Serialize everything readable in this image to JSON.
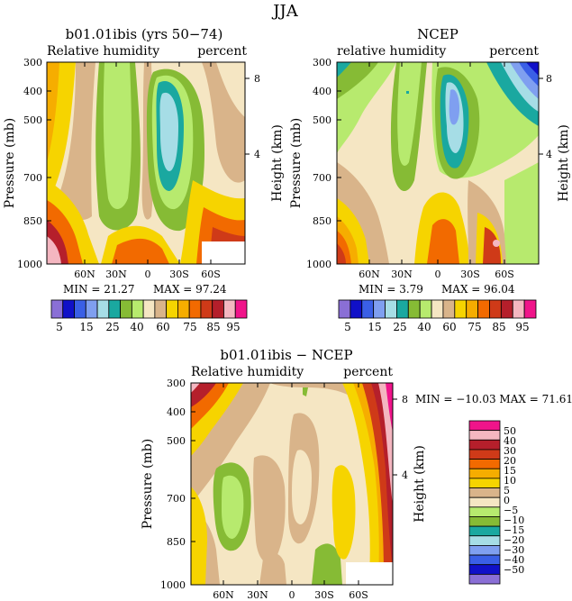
{
  "figure_title": "JJA",
  "colors": {
    "abs_scale": [
      "#8a6fd6",
      "#1010c8",
      "#3a5fe6",
      "#7f9ff0",
      "#a6dde6",
      "#1aa8a0",
      "#86bb35",
      "#b7ea6e",
      "#f5e6c3",
      "#d9b48a",
      "#f6d400",
      "#f6ad00",
      "#f26a00",
      "#cf3a18",
      "#b51f2b",
      "#f4b6c0",
      "#f0148a"
    ],
    "diff_scale": [
      "#8a6fd6",
      "#1010c8",
      "#3a5fe6",
      "#7f9ff0",
      "#a6dde6",
      "#1aa8a0",
      "#86bb35",
      "#b7ea6e",
      "#f5e6c3",
      "#d9b48a",
      "#f6d400",
      "#f6ad00",
      "#f26a00",
      "#cf3a18",
      "#b51f2b",
      "#f4b6c0",
      "#f0148a"
    ]
  },
  "panels": [
    {
      "title": "b01.01ibis (yrs 50−74)",
      "left_label": "Relative humidity",
      "right_label": "percent",
      "ylabel": "Pressure (mb)",
      "y2label": "Height (km)",
      "yticks": [
        "300",
        "400",
        "500",
        "700",
        "850",
        "1000"
      ],
      "y2ticks": [
        "8",
        "4"
      ],
      "xticks": [
        "60N",
        "30N",
        "0",
        "30S",
        "60S"
      ],
      "min_text": "MIN =   21.27",
      "max_text": "MAX =   97.24"
    },
    {
      "title": "NCEP",
      "left_label": "relative humidity",
      "right_label": "percent",
      "ylabel": "Pressure (mb)",
      "y2label": "Height (km)",
      "yticks": [
        "300",
        "400",
        "500",
        "700",
        "850",
        "1000"
      ],
      "y2ticks": [
        "8",
        "4"
      ],
      "xticks": [
        "60N",
        "30N",
        "0",
        "30S",
        "60S"
      ],
      "min_text": "MIN =    3.79",
      "max_text": "MAX =   96.04"
    },
    {
      "title": "b01.01ibis − NCEP",
      "left_label": "Relative humidity",
      "right_label": "percent",
      "ylabel": "Pressure (mb)",
      "y2label": "Height (km)",
      "yticks": [
        "300",
        "400",
        "500",
        "700",
        "850",
        "1000"
      ],
      "y2ticks": [
        "8",
        "4"
      ],
      "xticks": [
        "60N",
        "30N",
        "0",
        "30S",
        "60S"
      ],
      "minmax_text": "MIN = −10.03   MAX =   71.61"
    }
  ],
  "colorbars": {
    "abs_labels": [
      "5",
      "15",
      "25",
      "40",
      "60",
      "75",
      "85",
      "95"
    ],
    "diff_labels": [
      "50",
      "40",
      "30",
      "20",
      "15",
      "10",
      "5",
      "0",
      "−5",
      "−10",
      "−15",
      "−20",
      "−30",
      "−40",
      "−50"
    ]
  },
  "chart_data": [
    {
      "type": "heatmap",
      "title": "b01.01ibis (yrs 50−74)",
      "variable": "Relative humidity",
      "units": "percent",
      "xlabel": "",
      "ylabel": "Pressure (mb)",
      "y2label": "Height (km)",
      "x_ticks": [
        "60N",
        "30N",
        "0",
        "30S",
        "60S"
      ],
      "y_ticks_mb": [
        300,
        400,
        500,
        700,
        850,
        1000
      ],
      "y_log_scale": true,
      "min": 21.27,
      "max": 97.24,
      "contour_levels": [
        5,
        10,
        15,
        20,
        25,
        30,
        40,
        50,
        60,
        70,
        75,
        80,
        85,
        90,
        95
      ]
    },
    {
      "type": "heatmap",
      "title": "NCEP",
      "variable": "relative humidity",
      "units": "percent",
      "ylabel": "Pressure (mb)",
      "y2label": "Height (km)",
      "x_ticks": [
        "60N",
        "30N",
        "0",
        "30S",
        "60S"
      ],
      "y_ticks_mb": [
        300,
        400,
        500,
        700,
        850,
        1000
      ],
      "y_log_scale": true,
      "min": 3.79,
      "max": 96.04,
      "contour_levels": [
        5,
        10,
        15,
        20,
        25,
        30,
        40,
        50,
        60,
        70,
        75,
        80,
        85,
        90,
        95
      ]
    },
    {
      "type": "heatmap",
      "title": "b01.01ibis − NCEP",
      "variable": "Relative humidity",
      "units": "percent",
      "ylabel": "Pressure (mb)",
      "y2label": "Height (km)",
      "x_ticks": [
        "60N",
        "30N",
        "0",
        "30S",
        "60S"
      ],
      "y_ticks_mb": [
        300,
        400,
        500,
        700,
        850,
        1000
      ],
      "y_log_scale": true,
      "min": -10.03,
      "max": 71.61,
      "contour_levels": [
        -50,
        -40,
        -30,
        -20,
        -15,
        -10,
        -5,
        0,
        5,
        10,
        15,
        20,
        30,
        40,
        50
      ]
    }
  ]
}
